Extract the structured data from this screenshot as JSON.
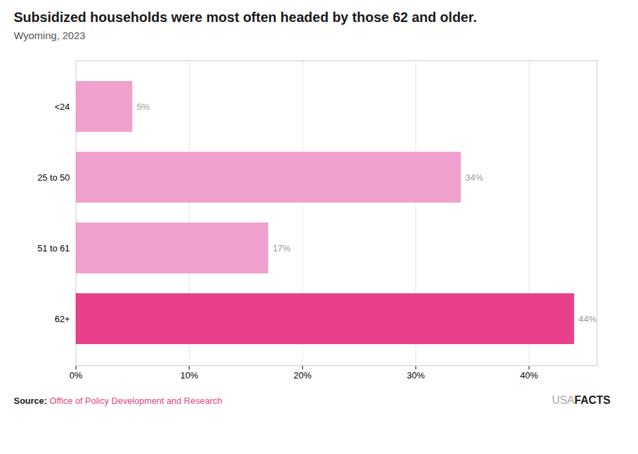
{
  "chart_data": {
    "type": "bar",
    "orientation": "horizontal",
    "title": "Subsidized households were most often headed by those 62 and older.",
    "subtitle": "Wyoming, 2023",
    "categories": [
      "<24",
      "25 to 50",
      "51 to 61",
      "62+"
    ],
    "values": [
      5,
      34,
      17,
      44
    ],
    "value_labels": [
      "5%",
      "34%",
      "17%",
      "44%"
    ],
    "data_labels": true,
    "colors": [
      "#f0a0cc",
      "#f0a0cc",
      "#f0a0cc",
      "#e8408a"
    ],
    "xlim": [
      0,
      46
    ],
    "xticks": [
      {
        "value": 0,
        "label": "0%"
      },
      {
        "value": 10,
        "label": "10%"
      },
      {
        "value": 20,
        "label": "20%"
      },
      {
        "value": 30,
        "label": "30%"
      },
      {
        "value": 40,
        "label": "40%"
      }
    ],
    "grid": true,
    "annotations": [
      "Source:",
      "Office of Policy Development and Research",
      "USA",
      "FACTS"
    ]
  }
}
